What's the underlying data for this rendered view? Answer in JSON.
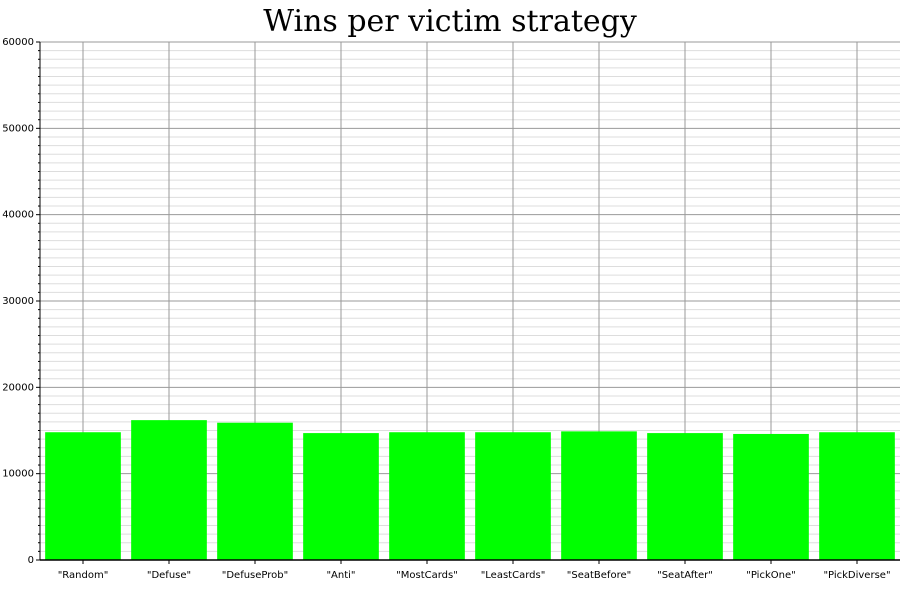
{
  "chart_data": {
    "type": "bar",
    "title": "Wins per victim strategy",
    "xlabel": "",
    "ylabel": "",
    "categories": [
      "\"Random\"",
      "\"Defuse\"",
      "\"DefuseProb\"",
      "\"Anti\"",
      "\"MostCards\"",
      "\"LeastCards\"",
      "\"SeatBefore\"",
      "\"SeatAfter\"",
      "\"PickOne\"",
      "\"PickDiverse\""
    ],
    "values": [
      14800,
      16200,
      15900,
      14700,
      14800,
      14800,
      14900,
      14700,
      14600,
      14800
    ],
    "ylim": [
      0,
      60000
    ],
    "yticks": [
      "0",
      "10000",
      "20000",
      "30000",
      "40000",
      "50000",
      "60000"
    ],
    "grid": true,
    "legend": "none",
    "colors": {
      "bar": "#00ff00",
      "major_grid": "#999999",
      "minor_grid": "#dddddd",
      "axis": "#000000"
    }
  }
}
